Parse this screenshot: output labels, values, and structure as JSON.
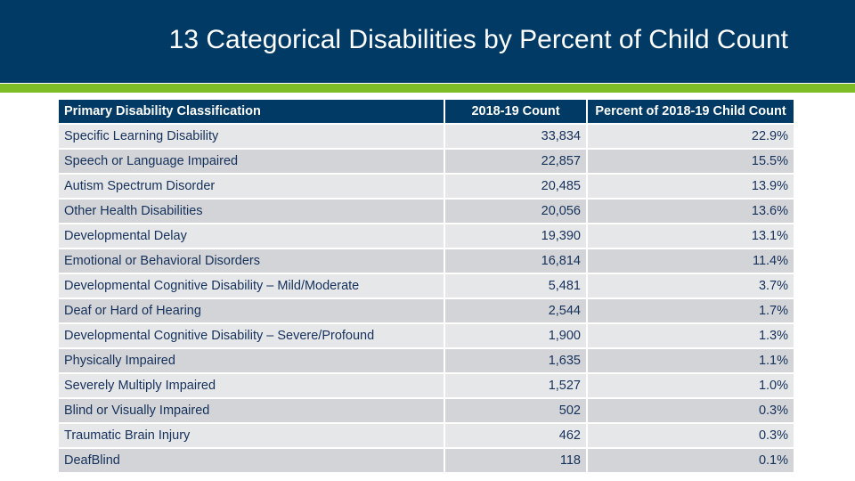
{
  "title": "13 Categorical Disabilities by Percent of Child Count",
  "colors": {
    "header": "#023a66",
    "accent": "#7ebd26"
  },
  "table": {
    "headers": [
      "Primary Disability Classification",
      "2018-19 Count",
      "Percent of 2018-19 Child Count"
    ],
    "rows": [
      [
        "Specific Learning Disability",
        "33,834",
        "22.9%"
      ],
      [
        "Speech or Language Impaired",
        "22,857",
        "15.5%"
      ],
      [
        "Autism Spectrum Disorder",
        "20,485",
        "13.9%"
      ],
      [
        "Other Health Disabilities",
        "20,056",
        "13.6%"
      ],
      [
        "Developmental Delay",
        "19,390",
        "13.1%"
      ],
      [
        "Emotional or Behavioral Disorders",
        "16,814",
        "11.4%"
      ],
      [
        "Developmental Cognitive Disability – Mild/Moderate",
        "5,481",
        "3.7%"
      ],
      [
        "Deaf or Hard of Hearing",
        "2,544",
        "1.7%"
      ],
      [
        "Developmental Cognitive Disability – Severe/Profound",
        "1,900",
        "1.3%"
      ],
      [
        "Physically Impaired",
        "1,635",
        "1.1%"
      ],
      [
        "Severely Multiply Impaired",
        "1,527",
        "1.0%"
      ],
      [
        "Blind or Visually Impaired",
        "502",
        "0.3%"
      ],
      [
        "Traumatic Brain Injury",
        "462",
        "0.3%"
      ],
      [
        "DeafBlind",
        "118",
        "0.1%"
      ]
    ]
  }
}
